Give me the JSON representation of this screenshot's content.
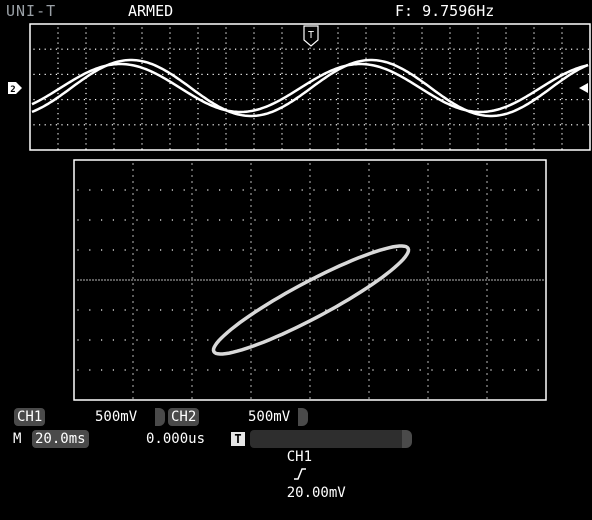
{
  "topbar": {
    "brand": "UNI-T",
    "trigger_state": "ARMED",
    "frequency": "F: 9.7596Hz"
  },
  "markers": {
    "left_channel_marker": "2",
    "trigger_position_marker": "T"
  },
  "status": {
    "ch1_label": "CH1",
    "ch1_scale": "500mV",
    "ch2_label": "CH2",
    "ch2_scale": "500mV",
    "main_label": "M",
    "timebase": "20.0ms",
    "trigger_offset": "0.000us",
    "trigger_icon": "T",
    "trigger_source": "CH1",
    "trigger_slope_icon": "rising-edge-icon",
    "trigger_level": "20.00mV"
  },
  "colors": {
    "background": "#000000",
    "trace": "#ffffff",
    "xy_trace": "#d9d9d9",
    "grid": "#ffffff"
  }
}
